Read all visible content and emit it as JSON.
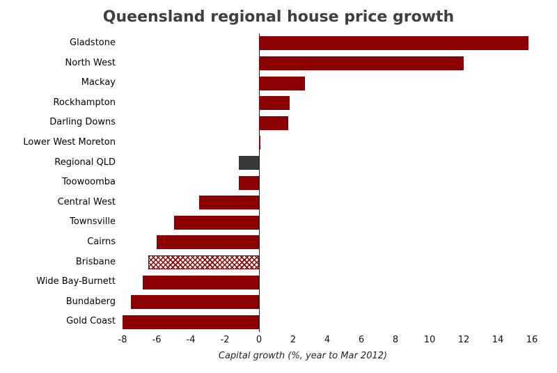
{
  "chart_data": {
    "type": "bar",
    "orientation": "horizontal",
    "title": "Queensland regional house price growth",
    "xlabel": "Capital growth (%, year to Mar 2012)",
    "categories": [
      "Gladstone",
      "North West",
      "Mackay",
      "Rockhampton",
      "Darling Downs",
      "Lower West Moreton",
      "Regional QLD",
      "Toowoomba",
      "Central West",
      "Townsville",
      "Cairns",
      "Brisbane",
      "Wide Bay-Burnett",
      "Bundaberg",
      "Gold Coast"
    ],
    "values": [
      15.8,
      12.0,
      2.7,
      1.8,
      1.7,
      0.1,
      -1.2,
      -1.2,
      -3.5,
      -5.0,
      -6.0,
      -6.5,
      -6.8,
      -7.5,
      -8.0
    ],
    "bar_styles": [
      "solid",
      "solid",
      "solid",
      "solid",
      "solid",
      "solid",
      "gray",
      "solid",
      "solid",
      "solid",
      "solid",
      "hatched",
      "solid",
      "solid",
      "solid"
    ],
    "xlim": [
      -8,
      16
    ],
    "xticks": [
      -8,
      -6,
      -4,
      -2,
      0,
      2,
      4,
      6,
      8,
      10,
      12,
      14,
      16
    ],
    "grid": false,
    "legend": "none",
    "colors": {
      "bar": "#8B0000",
      "highlight_gray": "#383838",
      "hatch": "#8B0000",
      "zero_line": "#1a1a1a",
      "title": "#3f3f3f",
      "text": "#000000"
    }
  }
}
